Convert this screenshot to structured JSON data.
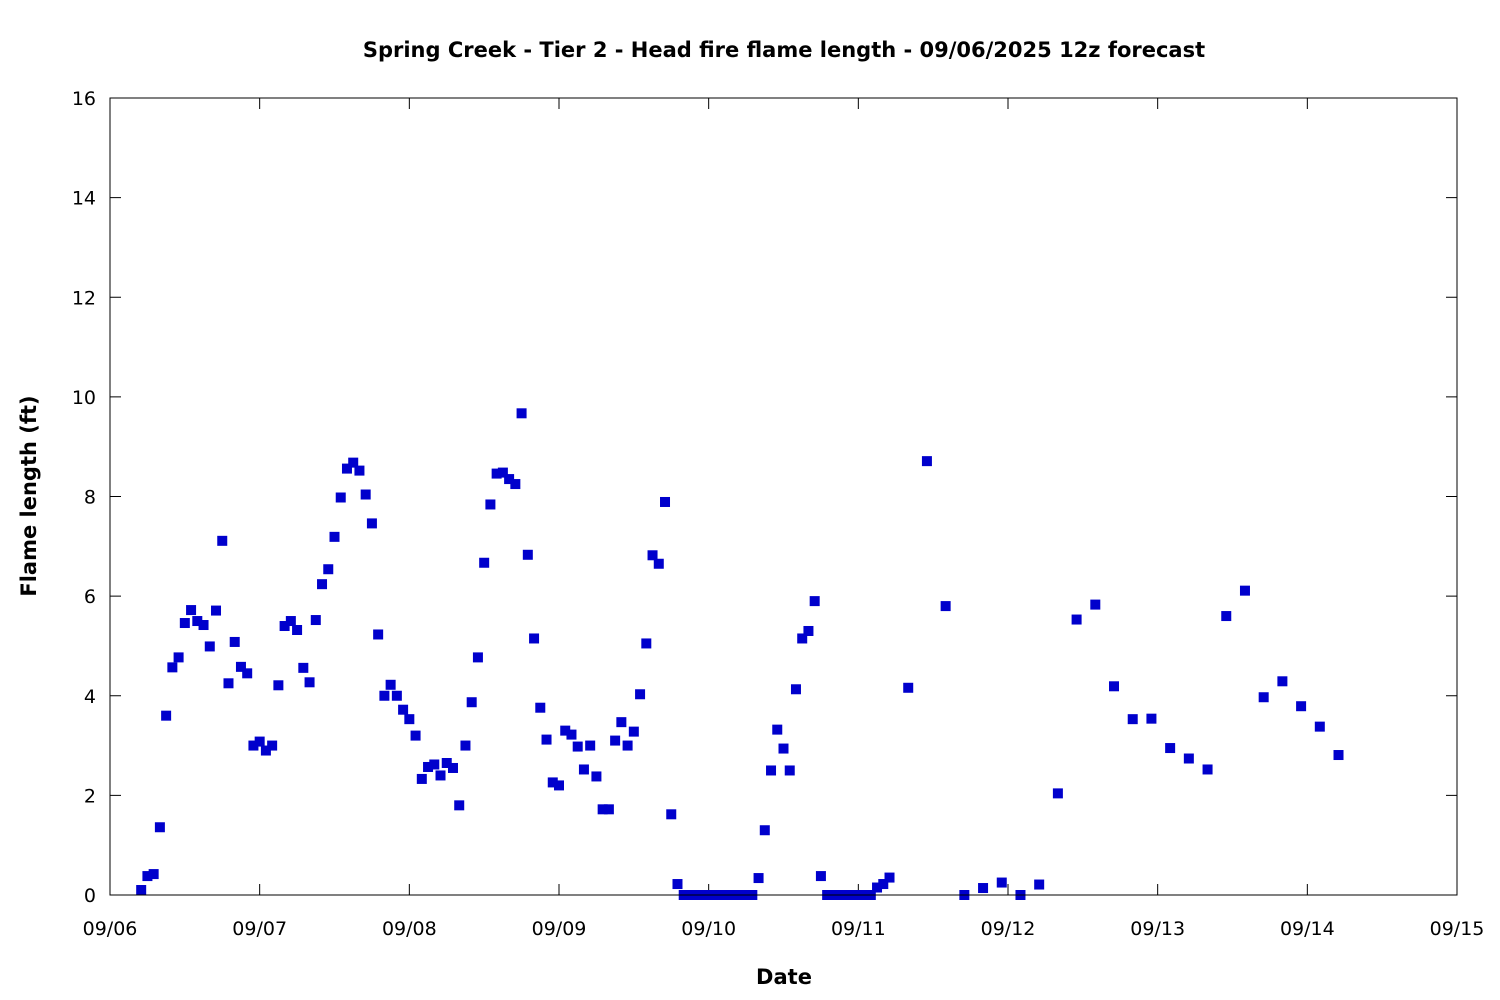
{
  "chart_data": {
    "type": "scatter",
    "title": "Spring Creek - Tier 2 - Head fire flame length - 09/06/2025 12z forecast",
    "xlabel": "Date",
    "ylabel": "Flame length (ft)",
    "xlim": [
      "09/06",
      "09/15"
    ],
    "ylim": [
      0,
      16
    ],
    "x_ticks": [
      "09/06",
      "09/07",
      "09/08",
      "09/09",
      "09/10",
      "09/11",
      "09/12",
      "09/13",
      "09/14",
      "09/15"
    ],
    "y_ticks": [
      "0",
      "2",
      "4",
      "6",
      "8",
      "10",
      "12",
      "14",
      "16"
    ],
    "grid": false,
    "marker": "square",
    "series": [
      {
        "color": "#0000cc",
        "points": [
          [
            "09/06 05:00",
            0.1
          ],
          [
            "09/06 06:00",
            0.38
          ],
          [
            "09/06 07:00",
            0.42
          ],
          [
            "09/06 08:00",
            1.36
          ],
          [
            "09/06 09:00",
            3.6
          ],
          [
            "09/06 10:00",
            4.57
          ],
          [
            "09/06 11:00",
            4.77
          ],
          [
            "09/06 12:00",
            5.46
          ],
          [
            "09/06 13:00",
            5.72
          ],
          [
            "09/06 14:00",
            5.5
          ],
          [
            "09/06 15:00",
            5.42
          ],
          [
            "09/06 16:00",
            4.99
          ],
          [
            "09/06 17:00",
            5.71
          ],
          [
            "09/06 18:00",
            7.11
          ],
          [
            "09/06 19:00",
            4.25
          ],
          [
            "09/06 20:00",
            5.08
          ],
          [
            "09/06 21:00",
            4.58
          ],
          [
            "09/06 22:00",
            4.45
          ],
          [
            "09/06 23:00",
            3.0
          ],
          [
            "09/07 00:00",
            3.08
          ],
          [
            "09/07 01:00",
            2.9
          ],
          [
            "09/07 02:00",
            3.0
          ],
          [
            "09/07 03:00",
            4.21
          ],
          [
            "09/07 04:00",
            5.4
          ],
          [
            "09/07 05:00",
            5.5
          ],
          [
            "09/07 06:00",
            5.32
          ],
          [
            "09/07 07:00",
            4.56
          ],
          [
            "09/07 08:00",
            4.27
          ],
          [
            "09/07 09:00",
            5.52
          ],
          [
            "09/07 10:00",
            6.24
          ],
          [
            "09/07 11:00",
            6.54
          ],
          [
            "09/07 12:00",
            7.19
          ],
          [
            "09/07 13:00",
            7.98
          ],
          [
            "09/07 14:00",
            8.56
          ],
          [
            "09/07 15:00",
            8.68
          ],
          [
            "09/07 16:00",
            8.52
          ],
          [
            "09/07 17:00",
            8.04
          ],
          [
            "09/07 18:00",
            7.46
          ],
          [
            "09/07 19:00",
            5.23
          ],
          [
            "09/07 20:00",
            4.0
          ],
          [
            "09/07 21:00",
            4.22
          ],
          [
            "09/07 22:00",
            4.0
          ],
          [
            "09/07 23:00",
            3.72
          ],
          [
            "09/08 00:00",
            3.53
          ],
          [
            "09/08 01:00",
            3.2
          ],
          [
            "09/08 02:00",
            2.33
          ],
          [
            "09/08 03:00",
            2.57
          ],
          [
            "09/08 04:00",
            2.62
          ],
          [
            "09/08 05:00",
            2.4
          ],
          [
            "09/08 06:00",
            2.65
          ],
          [
            "09/08 07:00",
            2.55
          ],
          [
            "09/08 08:00",
            1.8
          ],
          [
            "09/08 09:00",
            3.0
          ],
          [
            "09/08 10:00",
            3.87
          ],
          [
            "09/08 11:00",
            4.77
          ],
          [
            "09/08 12:00",
            6.67
          ],
          [
            "09/08 13:00",
            7.84
          ],
          [
            "09/08 14:00",
            8.46
          ],
          [
            "09/08 15:00",
            8.48
          ],
          [
            "09/08 16:00",
            8.35
          ],
          [
            "09/08 17:00",
            8.25
          ],
          [
            "09/08 18:00",
            9.67
          ],
          [
            "09/08 19:00",
            6.83
          ],
          [
            "09/08 20:00",
            5.15
          ],
          [
            "09/08 21:00",
            3.76
          ],
          [
            "09/08 22:00",
            3.12
          ],
          [
            "09/08 23:00",
            2.26
          ],
          [
            "09/09 00:00",
            2.2
          ],
          [
            "09/09 01:00",
            3.3
          ],
          [
            "09/09 02:00",
            3.22
          ],
          [
            "09/09 03:00",
            2.98
          ],
          [
            "09/09 04:00",
            2.52
          ],
          [
            "09/09 05:00",
            3.0
          ],
          [
            "09/09 06:00",
            2.38
          ],
          [
            "09/09 07:00",
            1.72
          ],
          [
            "09/09 08:00",
            1.72
          ],
          [
            "09/09 09:00",
            3.1
          ],
          [
            "09/09 10:00",
            3.47
          ],
          [
            "09/09 11:00",
            3.0
          ],
          [
            "09/09 12:00",
            3.28
          ],
          [
            "09/09 13:00",
            4.03
          ],
          [
            "09/09 14:00",
            5.05
          ],
          [
            "09/09 15:00",
            6.82
          ],
          [
            "09/09 16:00",
            6.65
          ],
          [
            "09/09 17:00",
            7.89
          ],
          [
            "09/09 18:00",
            1.62
          ],
          [
            "09/09 19:00",
            0.22
          ],
          [
            "09/09 20:00",
            0
          ],
          [
            "09/09 21:00",
            0
          ],
          [
            "09/09 22:00",
            0
          ],
          [
            "09/09 23:00",
            0
          ],
          [
            "09/10 00:00",
            0
          ],
          [
            "09/10 01:00",
            0
          ],
          [
            "09/10 02:00",
            0
          ],
          [
            "09/10 03:00",
            0
          ],
          [
            "09/10 04:00",
            0
          ],
          [
            "09/10 05:00",
            0
          ],
          [
            "09/10 06:00",
            0
          ],
          [
            "09/10 07:00",
            0
          ],
          [
            "09/10 08:00",
            0.34
          ],
          [
            "09/10 09:00",
            1.3
          ],
          [
            "09/10 10:00",
            2.5
          ],
          [
            "09/10 11:00",
            3.32
          ],
          [
            "09/10 12:00",
            2.94
          ],
          [
            "09/10 13:00",
            2.5
          ],
          [
            "09/10 14:00",
            4.13
          ],
          [
            "09/10 15:00",
            5.15
          ],
          [
            "09/10 16:00",
            5.3
          ],
          [
            "09/10 17:00",
            5.9
          ],
          [
            "09/10 18:00",
            0.38
          ],
          [
            "09/10 19:00",
            0
          ],
          [
            "09/10 20:00",
            0
          ],
          [
            "09/10 21:00",
            0
          ],
          [
            "09/10 22:00",
            0
          ],
          [
            "09/10 23:00",
            0
          ],
          [
            "09/11 00:00",
            0
          ],
          [
            "09/11 01:00",
            0
          ],
          [
            "09/11 02:00",
            0
          ],
          [
            "09/11 03:00",
            0.15
          ],
          [
            "09/11 04:00",
            0.22
          ],
          [
            "09/11 05:00",
            0.35
          ],
          [
            "09/11 08:00",
            4.16
          ],
          [
            "09/11 11:00",
            8.71
          ],
          [
            "09/11 14:00",
            5.8
          ],
          [
            "09/11 17:00",
            0
          ],
          [
            "09/11 20:00",
            0.14
          ],
          [
            "09/11 23:00",
            0.25
          ],
          [
            "09/12 02:00",
            0
          ],
          [
            "09/12 05:00",
            0.21
          ],
          [
            "09/12 08:00",
            2.04
          ],
          [
            "09/12 11:00",
            5.53
          ],
          [
            "09/12 14:00",
            5.83
          ],
          [
            "09/12 17:00",
            4.19
          ],
          [
            "09/12 20:00",
            3.53
          ],
          [
            "09/12 23:00",
            3.54
          ],
          [
            "09/13 02:00",
            2.95
          ],
          [
            "09/13 05:00",
            2.74
          ],
          [
            "09/13 08:00",
            2.52
          ],
          [
            "09/13 11:00",
            5.6
          ],
          [
            "09/13 14:00",
            6.11
          ],
          [
            "09/13 17:00",
            3.97
          ],
          [
            "09/13 20:00",
            4.29
          ],
          [
            "09/13 23:00",
            3.79
          ],
          [
            "09/14 02:00",
            3.38
          ],
          [
            "09/14 05:00",
            2.81
          ]
        ]
      }
    ]
  }
}
